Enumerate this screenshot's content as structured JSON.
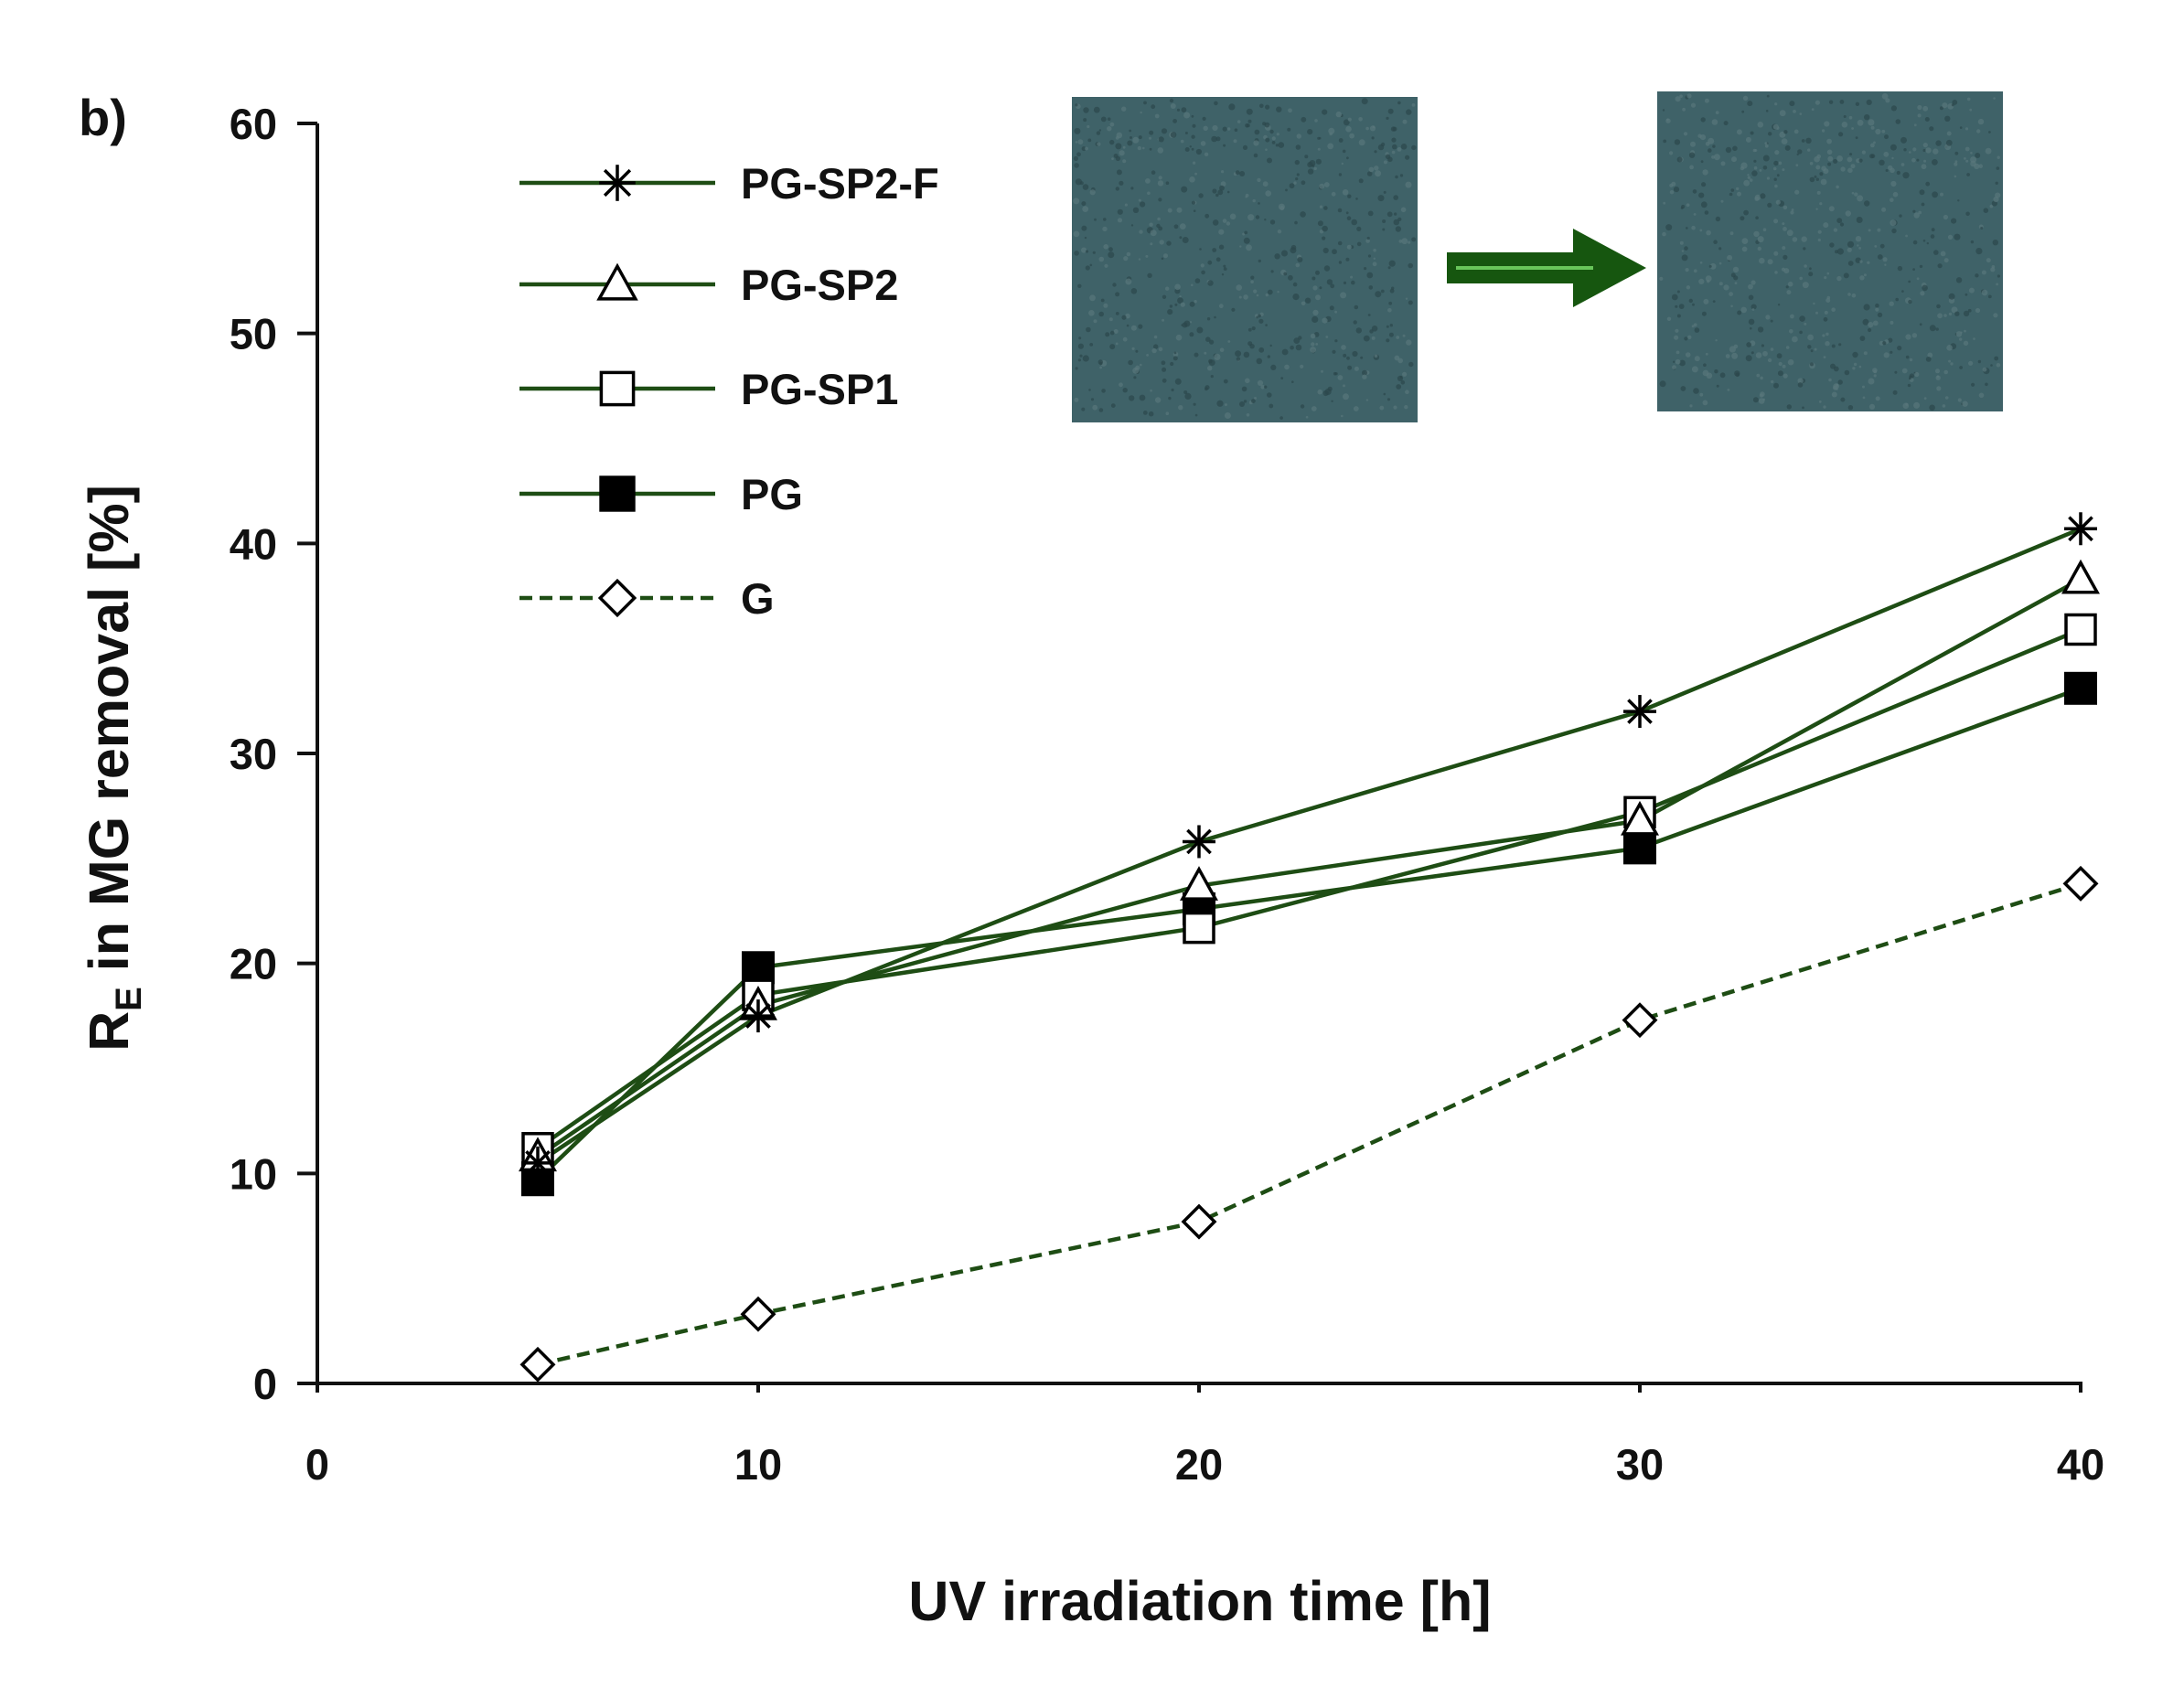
{
  "panel_label": "b)",
  "colors": {
    "series_line": "#1e4d14",
    "axis": "#111111",
    "tile_fill": "#3f6268",
    "tile_dark": "#2c474c",
    "tile_light": "#58767a",
    "arrow": "#16560f",
    "arrow_highlight": "#68c65a"
  },
  "inset": {
    "before_image": "sample-tile-before-icon",
    "arrow": "arrow-right-icon",
    "after_image": "sample-tile-after-icon"
  },
  "chart_data": {
    "type": "line",
    "title": "",
    "xlabel": "UV irradiation time [h]",
    "ylabel_main": "R",
    "ylabel_sub": "E",
    "ylabel_rest": " in MG removal  [%]",
    "xlim": [
      0,
      40
    ],
    "ylim": [
      0,
      60
    ],
    "x_ticks": [
      "0",
      "10",
      "20",
      "30",
      "40"
    ],
    "y_ticks": [
      "0",
      "10",
      "20",
      "30",
      "40",
      "50",
      "60"
    ],
    "grid": false,
    "legend_position": "top-left",
    "x": [
      5,
      10,
      20,
      30,
      40
    ],
    "series": [
      {
        "name": "PG-SP2-F",
        "marker": "asterisk",
        "dash": "solid",
        "values": [
          10.5,
          17.5,
          25.8,
          32.0,
          40.7
        ]
      },
      {
        "name": "PG-SP2",
        "marker": "triangle-open",
        "dash": "solid",
        "values": [
          10.8,
          18.0,
          23.7,
          26.8,
          38.3
        ]
      },
      {
        "name": "PG-SP1",
        "marker": "square-open",
        "dash": "solid",
        "values": [
          11.2,
          18.5,
          21.7,
          27.2,
          35.9
        ]
      },
      {
        "name": "PG",
        "marker": "square-filled",
        "dash": "solid",
        "values": [
          9.7,
          19.8,
          22.6,
          25.5,
          33.1
        ]
      },
      {
        "name": "G",
        "marker": "diamond-open",
        "dash": "dashed",
        "values": [
          0.9,
          3.3,
          7.7,
          17.3,
          23.8
        ]
      }
    ]
  }
}
